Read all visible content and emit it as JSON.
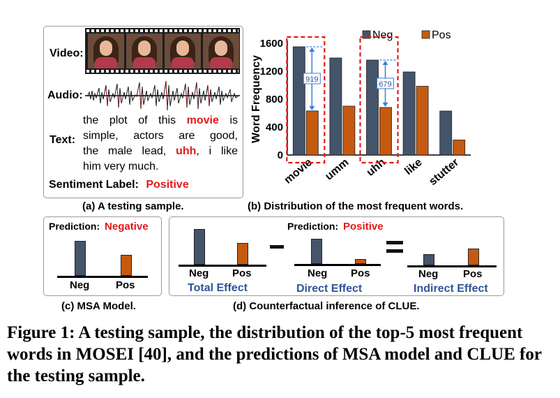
{
  "panel_a": {
    "video_label": "Video:",
    "audio_label": "Audio:",
    "text_label": "Text:",
    "text_line1_pre": "the plot of this ",
    "text_word_movie": "movie",
    "text_line1_post": " is",
    "text_line2": "simple, actors are good,",
    "text_line3_pre": "the male lead, ",
    "text_word_uhh": "uhh",
    "text_line3_post": ", i like",
    "text_line4": "him very much.",
    "sentiment_label": "Sentiment Label:",
    "sentiment_value": "Positive",
    "caption": "(a) A testing sample."
  },
  "panel_b": {
    "caption": "(b) Distribution of the most frequent words.",
    "annot_movie": "919",
    "annot_uhh": "679"
  },
  "panel_c": {
    "prediction_label": "Prediction:",
    "prediction_value": "Negative",
    "neg": "Neg",
    "pos": "Pos",
    "caption": "(c) MSA Model."
  },
  "panel_d": {
    "prediction_label": "Prediction:",
    "prediction_value": "Positive",
    "neg": "Neg",
    "pos": "Pos",
    "total_effect": "Total Effect",
    "direct_effect": "Direct Effect",
    "indirect_effect": "Indirect Effect",
    "caption": "(d) Counterfactual inference of CLUE."
  },
  "figure_caption": "Figure 1: A testing sample, the distribution of the top-5 most frequent words in MOSEI [40], and the predictions of MSA model and CLUE for the testing sample.",
  "colors": {
    "neg": "#44546a",
    "pos": "#c55a11",
    "highlight": "#e31a1c",
    "effect": "#2e5597"
  },
  "chart_data": {
    "type": "bar",
    "title": "",
    "xlabel": "",
    "ylabel": "Word Frequency",
    "ylim": [
      0,
      1600
    ],
    "yticks": [
      "0",
      "400",
      "800",
      "1200",
      "1600"
    ],
    "categories": [
      "movie",
      "umm",
      "uhh",
      "like",
      "stutter"
    ],
    "series": [
      {
        "name": "Neg",
        "values": [
          1550,
          1390,
          1360,
          1190,
          630
        ]
      },
      {
        "name": "Pos",
        "values": [
          631,
          700,
          681,
          985,
          215
        ]
      }
    ],
    "legend": "top"
  }
}
